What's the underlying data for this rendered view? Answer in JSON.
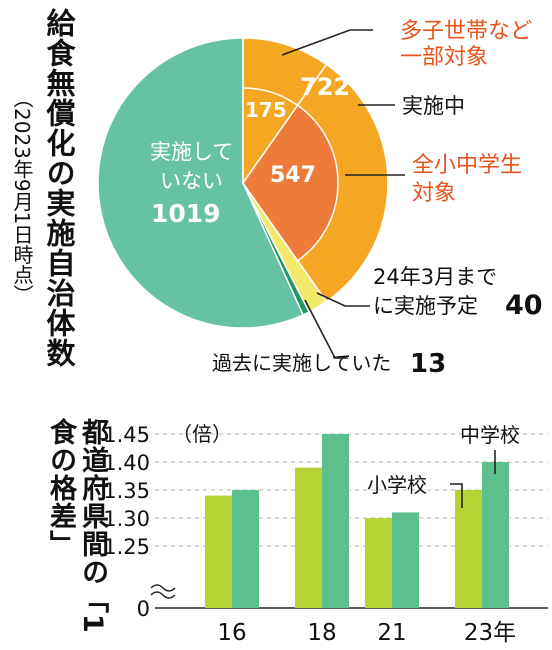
{
  "pie_title": "給食無償化の実施自治体数",
  "pie_date": "（2023年9月1日時点）",
  "bar_title": "都道府県間の「1食の格差」",
  "chart_data": [
    {
      "type": "pie",
      "slices": [
        {
          "key": "not_implemented",
          "label": "実施していない",
          "value": 1019,
          "color": "#66c2a5"
        },
        {
          "key": "multi_child",
          "label": "多子世帯など一部対象",
          "value": 175,
          "color": "#f5a623"
        },
        {
          "key": "all_students",
          "label": "全小中学生対象",
          "value": 547,
          "color": "#ef7b3a"
        },
        {
          "key": "planned",
          "label": "24年3月までに実施予定",
          "value": 40,
          "color": "#f2e86a"
        },
        {
          "key": "past",
          "label": "過去に実施していた",
          "value": 13,
          "color": "#1f9a5c"
        }
      ],
      "implemented_total": 722,
      "implemented_label": "実施中",
      "texts": {
        "not_impl_line1": "実施して",
        "not_impl_line2": "いない",
        "not_impl_value": "1019",
        "multi_value": "175",
        "total_value": "722",
        "all_value": "547",
        "multi_line1": "多子世帯など",
        "multi_line2": "一部対象",
        "implemented": "実施中",
        "all_line1": "全小中学生",
        "all_line2": "対象",
        "planned_line1": "24年3月まで",
        "planned_line2": "に実施予定",
        "planned_value": "40",
        "past_label": "過去に実施していた",
        "past_value": "13"
      }
    },
    {
      "type": "bar",
      "categories": [
        "16",
        "18",
        "21",
        "23年"
      ],
      "series": [
        {
          "name": "小学校",
          "values": [
            1.34,
            1.39,
            1.3,
            1.35
          ],
          "color": "#b5d335"
        },
        {
          "name": "中学校",
          "values": [
            1.35,
            1.45,
            1.31,
            1.4
          ],
          "color": "#5cbf8e"
        }
      ],
      "ylim": [
        1.2,
        1.45
      ],
      "yticks": [
        "1.45",
        "1.40",
        "1.35",
        "1.30",
        "1.25",
        "0"
      ],
      "ytick_values": [
        1.45,
        1.4,
        1.35,
        1.3,
        1.25
      ],
      "unit_label": "（倍）",
      "axis_break": true,
      "grid": "dashed"
    }
  ]
}
